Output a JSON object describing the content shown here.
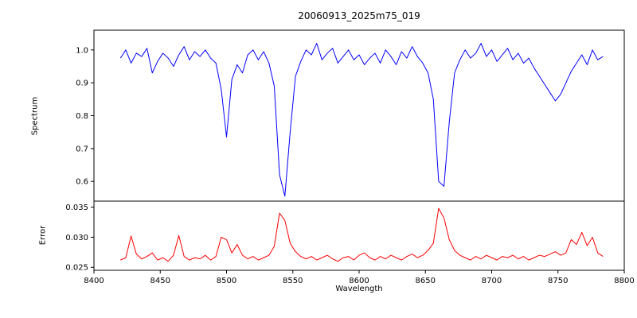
{
  "figure": {
    "title": "20060913_2025m75_019",
    "xlabel": "Wavelength"
  },
  "chart_data": [
    {
      "type": "line",
      "title": "20060913_2025m75_019",
      "ylabel": "Spectrum",
      "color": "#0000ff",
      "xlim": [
        8400,
        8800
      ],
      "ylim": [
        0.54,
        1.06
      ],
      "yticks": [
        0.6,
        0.7,
        0.8,
        0.9,
        1.0
      ],
      "yticklabels": [
        "0.6",
        "0.7",
        "0.8",
        "0.9",
        "1.0"
      ],
      "grid": false,
      "legend": "none",
      "x": [
        8420,
        8424,
        8428,
        8432,
        8436,
        8440,
        8444,
        8448,
        8452,
        8456,
        8460,
        8464,
        8468,
        8472,
        8476,
        8480,
        8484,
        8488,
        8492,
        8496,
        8500,
        8504,
        8508,
        8512,
        8516,
        8520,
        8524,
        8528,
        8532,
        8536,
        8540,
        8544,
        8548,
        8552,
        8556,
        8560,
        8564,
        8568,
        8572,
        8576,
        8580,
        8584,
        8588,
        8592,
        8596,
        8600,
        8604,
        8608,
        8612,
        8616,
        8620,
        8624,
        8628,
        8632,
        8636,
        8640,
        8644,
        8648,
        8652,
        8656,
        8660,
        8664,
        8668,
        8672,
        8676,
        8680,
        8684,
        8688,
        8692,
        8696,
        8700,
        8704,
        8708,
        8712,
        8716,
        8720,
        8724,
        8728,
        8732,
        8736,
        8740,
        8744,
        8748,
        8752,
        8756,
        8760,
        8764,
        8768,
        8772,
        8776,
        8780,
        8784
      ],
      "y": [
        0.975,
        1.0,
        0.96,
        0.99,
        0.98,
        1.005,
        0.93,
        0.965,
        0.99,
        0.975,
        0.95,
        0.985,
        1.01,
        0.97,
        0.995,
        0.98,
        1.0,
        0.975,
        0.96,
        0.88,
        0.735,
        0.91,
        0.955,
        0.93,
        0.985,
        1.0,
        0.97,
        0.995,
        0.96,
        0.89,
        0.62,
        0.555,
        0.75,
        0.92,
        0.965,
        1.0,
        0.985,
        1.02,
        0.97,
        0.99,
        1.005,
        0.96,
        0.98,
        1.0,
        0.97,
        0.985,
        0.955,
        0.975,
        0.99,
        0.96,
        1.0,
        0.98,
        0.955,
        0.995,
        0.975,
        1.01,
        0.98,
        0.96,
        0.93,
        0.85,
        0.6,
        0.585,
        0.78,
        0.93,
        0.97,
        1.0,
        0.975,
        0.99,
        1.02,
        0.98,
        1.0,
        0.965,
        0.985,
        1.005,
        0.97,
        0.99,
        0.96,
        0.975,
        0.945,
        0.92,
        0.895,
        0.87,
        0.845,
        0.865,
        0.9,
        0.935,
        0.96,
        0.985,
        0.955,
        1.0,
        0.97,
        0.98
      ],
      "absorption_line_centers": [
        8498,
        8542,
        8662,
        8750
      ]
    },
    {
      "type": "line",
      "ylabel": "Error",
      "xlabel": "Wavelength",
      "color": "#ff0000",
      "xlim": [
        8400,
        8800
      ],
      "ylim": [
        0.0245,
        0.036
      ],
      "yticks": [
        0.025,
        0.03,
        0.035
      ],
      "yticklabels": [
        "0.025",
        "0.030",
        "0.035"
      ],
      "xticks": [
        8400,
        8450,
        8500,
        8550,
        8600,
        8650,
        8700,
        8750,
        8800
      ],
      "xticklabels": [
        "8400",
        "8450",
        "8500",
        "8550",
        "8600",
        "8650",
        "8700",
        "8750",
        "8800"
      ],
      "grid": false,
      "legend": "none",
      "x": [
        8420,
        8424,
        8428,
        8432,
        8436,
        8440,
        8444,
        8448,
        8452,
        8456,
        8460,
        8464,
        8468,
        8472,
        8476,
        8480,
        8484,
        8488,
        8492,
        8496,
        8500,
        8504,
        8508,
        8512,
        8516,
        8520,
        8524,
        8528,
        8532,
        8536,
        8540,
        8544,
        8548,
        8552,
        8556,
        8560,
        8564,
        8568,
        8572,
        8576,
        8580,
        8584,
        8588,
        8592,
        8596,
        8600,
        8604,
        8608,
        8612,
        8616,
        8620,
        8624,
        8628,
        8632,
        8636,
        8640,
        8644,
        8648,
        8652,
        8656,
        8660,
        8664,
        8668,
        8672,
        8676,
        8680,
        8684,
        8688,
        8692,
        8696,
        8700,
        8704,
        8708,
        8712,
        8716,
        8720,
        8724,
        8728,
        8732,
        8736,
        8740,
        8744,
        8748,
        8752,
        8756,
        8760,
        8764,
        8768,
        8772,
        8776,
        8780,
        8784
      ],
      "y": [
        0.0262,
        0.0266,
        0.0302,
        0.0272,
        0.0264,
        0.0268,
        0.0274,
        0.0262,
        0.0266,
        0.026,
        0.027,
        0.0303,
        0.0268,
        0.0262,
        0.0266,
        0.0264,
        0.027,
        0.0262,
        0.0268,
        0.03,
        0.0296,
        0.0274,
        0.0288,
        0.027,
        0.0264,
        0.0268,
        0.0262,
        0.0266,
        0.027,
        0.0285,
        0.034,
        0.0328,
        0.029,
        0.0276,
        0.0268,
        0.0264,
        0.0268,
        0.0262,
        0.0266,
        0.027,
        0.0264,
        0.026,
        0.0266,
        0.0268,
        0.0262,
        0.027,
        0.0274,
        0.0266,
        0.0262,
        0.0268,
        0.0264,
        0.027,
        0.0266,
        0.0262,
        0.0268,
        0.0272,
        0.0266,
        0.027,
        0.0278,
        0.029,
        0.0348,
        0.0332,
        0.0296,
        0.0278,
        0.027,
        0.0266,
        0.0262,
        0.0268,
        0.0264,
        0.027,
        0.0266,
        0.0262,
        0.0268,
        0.0266,
        0.027,
        0.0264,
        0.0268,
        0.0262,
        0.0266,
        0.027,
        0.0268,
        0.0272,
        0.0276,
        0.027,
        0.0274,
        0.0296,
        0.0288,
        0.0308,
        0.0286,
        0.03,
        0.0274,
        0.0268
      ]
    }
  ]
}
